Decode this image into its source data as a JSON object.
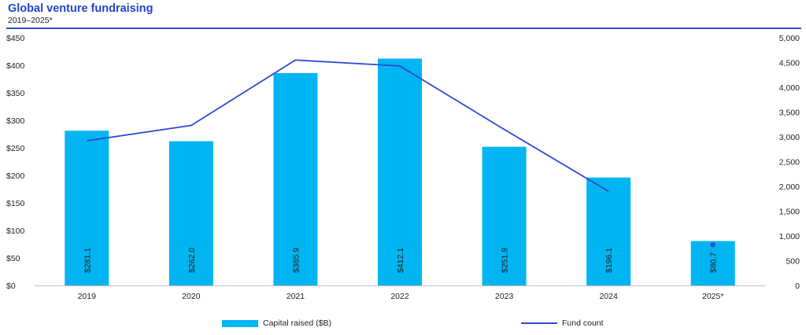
{
  "header": {
    "title": "Global venture fundraising",
    "subtitle": "2019–2025*"
  },
  "legend": {
    "bar_label": "Capital raised ($B)",
    "line_label": "Fund count"
  },
  "colors": {
    "bar": "#00b5f1",
    "line": "#2e4dd6",
    "title": "#2046c8"
  },
  "chart_data": {
    "type": "bar",
    "title": "Global venture fundraising",
    "subtitle": "2019–2025*",
    "categories": [
      "2019",
      "2020",
      "2021",
      "2022",
      "2023",
      "2024",
      "2025*"
    ],
    "series": [
      {
        "name": "Capital raised ($B)",
        "type": "bar",
        "axis": "left",
        "values": [
          281.1,
          262.0,
          385.9,
          412.1,
          251.9,
          196.1,
          80.7
        ],
        "data_labels": [
          "$281.1",
          "$262.0",
          "$385.9",
          "$412.1",
          "$251.9",
          "$196.1",
          "$80.7"
        ]
      },
      {
        "name": "Fund count",
        "type": "line",
        "axis": "right",
        "values": [
          2920,
          3230,
          4550,
          4430,
          3150,
          1900,
          820
        ],
        "note": "2025* shown as single marker"
      }
    ],
    "y_left": {
      "ylim": [
        0,
        450
      ],
      "ticks": [
        0,
        50,
        100,
        150,
        200,
        250,
        300,
        350,
        400,
        450
      ],
      "tick_labels": [
        "$0",
        "$50",
        "$100",
        "$150",
        "$200",
        "$250",
        "$300",
        "$350",
        "$400",
        "$450"
      ]
    },
    "y_right": {
      "ylim": [
        0,
        5000
      ],
      "ticks": [
        0,
        500,
        1000,
        1500,
        2000,
        2500,
        3000,
        3500,
        4000,
        4500,
        5000
      ],
      "tick_labels": [
        "0",
        "500",
        "1,000",
        "1,500",
        "2,000",
        "2,500",
        "3,000",
        "3,500",
        "4,000",
        "4,500",
        "5,000"
      ]
    },
    "grid": false,
    "legend_position": "bottom"
  }
}
